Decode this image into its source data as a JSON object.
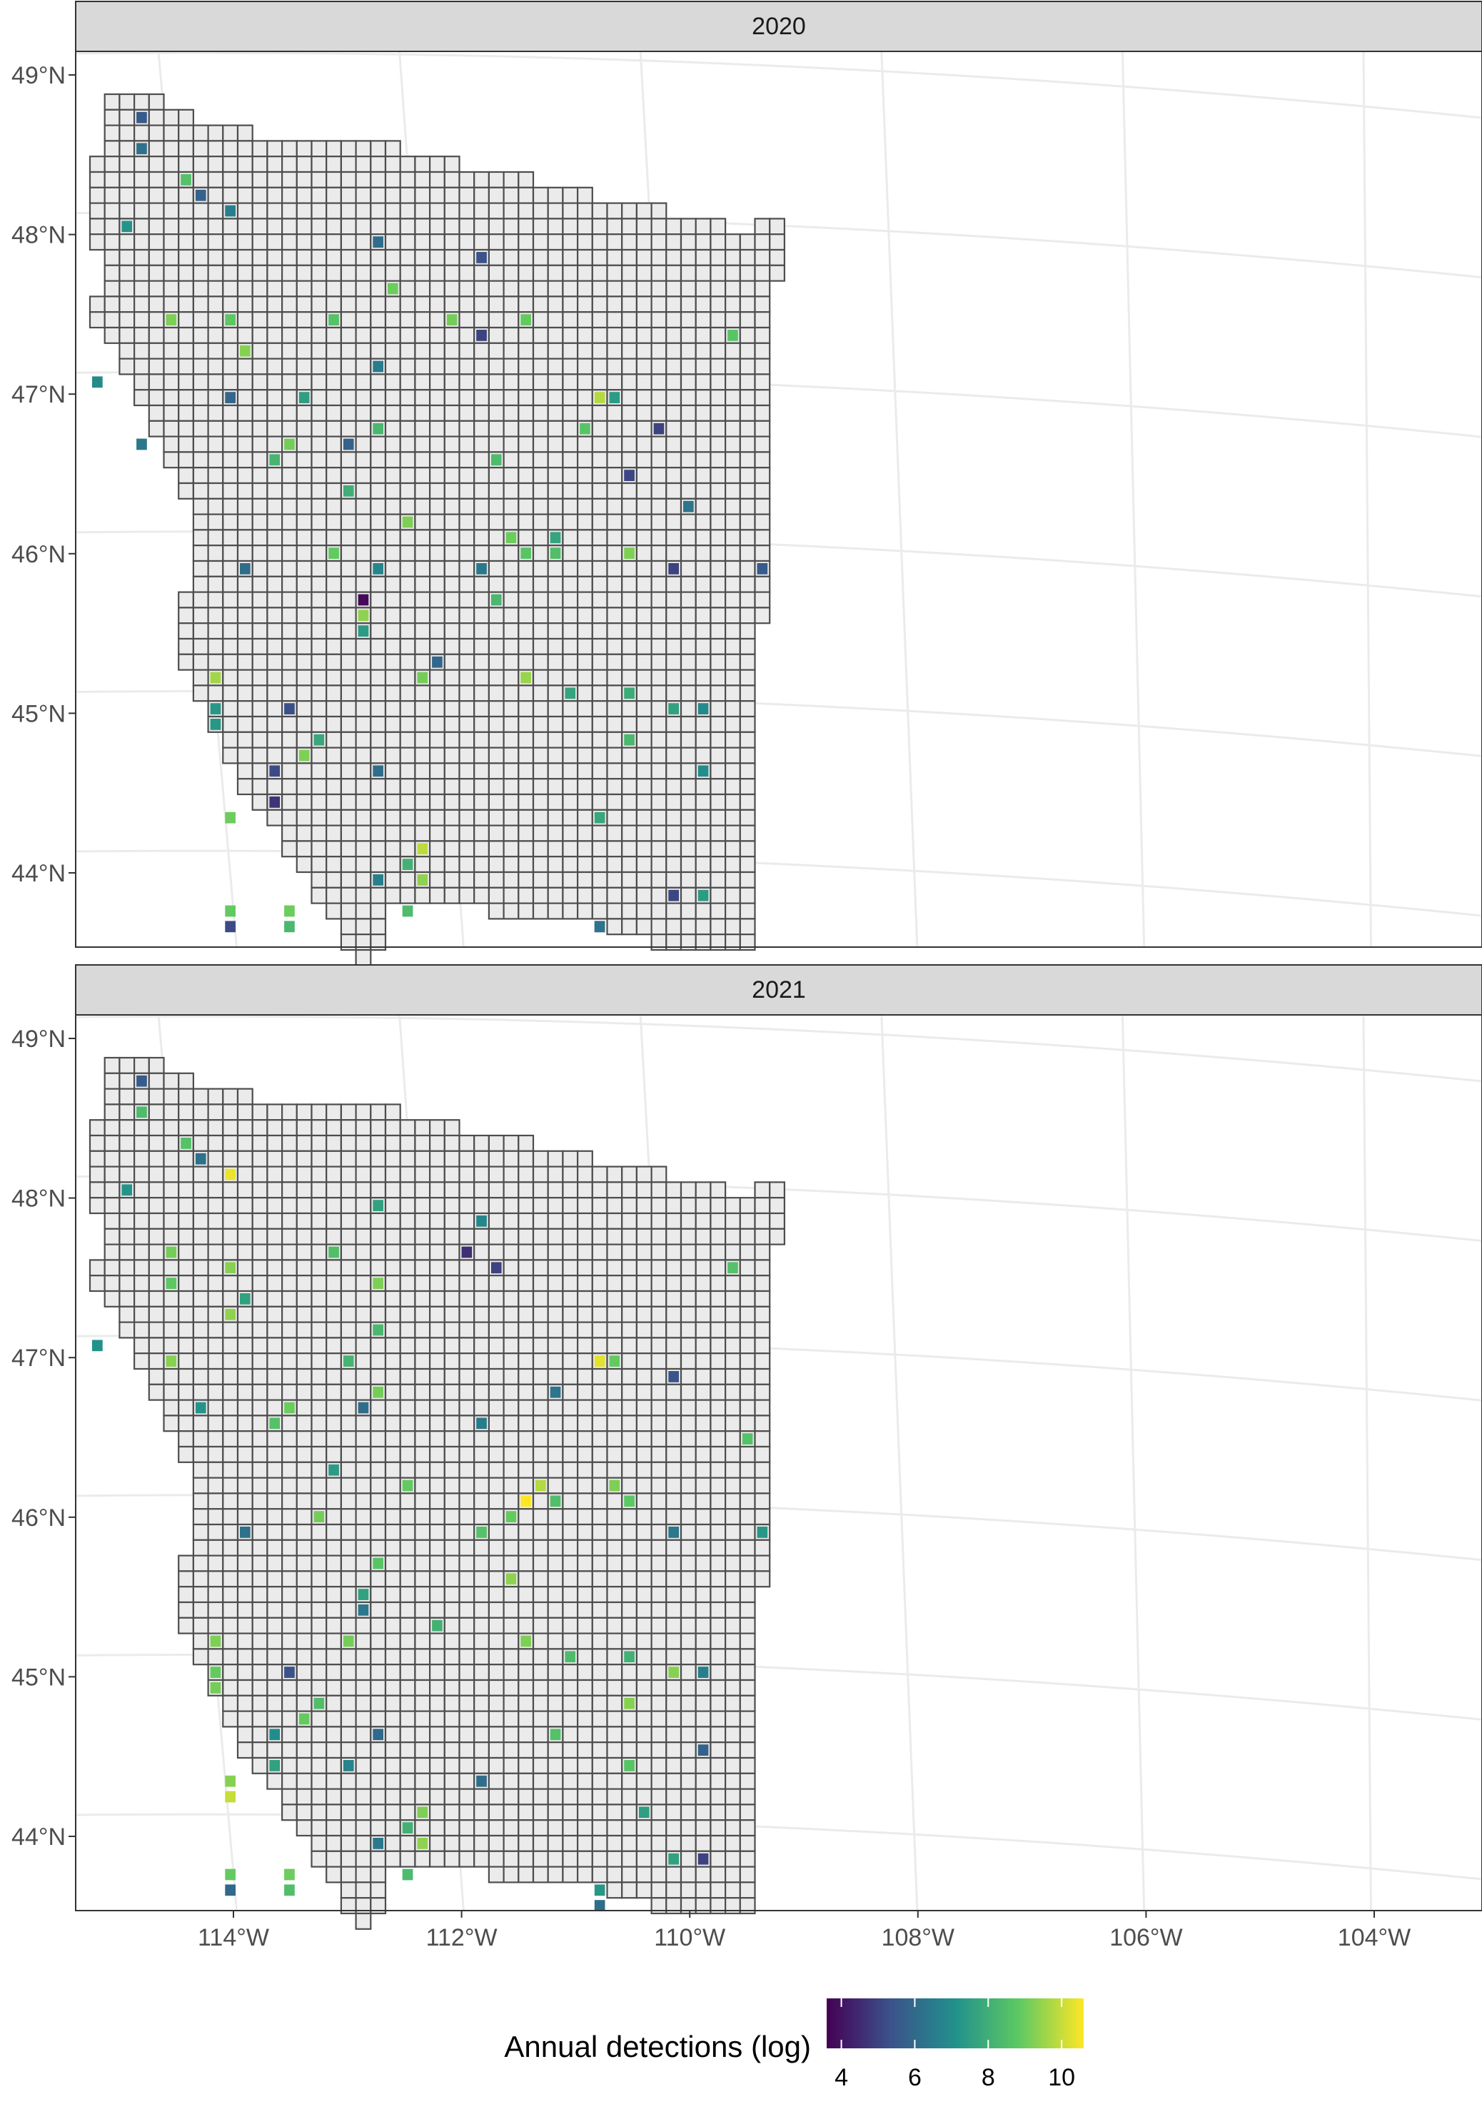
{
  "panels": [
    {
      "label": "2020"
    },
    {
      "label": "2021"
    }
  ],
  "y_ticks": [
    {
      "value": 49,
      "label": "49°N"
    },
    {
      "value": 48,
      "label": "48°N"
    },
    {
      "value": 47,
      "label": "47°N"
    },
    {
      "value": 46,
      "label": "46°N"
    },
    {
      "value": 45,
      "label": "45°N"
    },
    {
      "value": 44,
      "label": "44°N"
    }
  ],
  "x_ticks": [
    {
      "value": -114,
      "label": "114°W"
    },
    {
      "value": -112,
      "label": "112°W"
    },
    {
      "value": -110,
      "label": "110°W"
    },
    {
      "value": -108,
      "label": "108°W"
    },
    {
      "value": -106,
      "label": "106°W"
    },
    {
      "value": -104,
      "label": "104°W"
    }
  ],
  "legend": {
    "title": "Annual detections (log)",
    "range": [
      3.6,
      10.6
    ],
    "ticks": [
      {
        "value": 4,
        "label": "4"
      },
      {
        "value": 6,
        "label": "6"
      },
      {
        "value": 8,
        "label": "8"
      },
      {
        "value": 10,
        "label": "10"
      }
    ],
    "palette": [
      "#440154",
      "#3b528b",
      "#21918c",
      "#5ec962",
      "#fde725"
    ]
  },
  "colors": {
    "cell_fill": "#ebebeb",
    "cell_stroke": "#4d4d4d",
    "panel_border": "#333333",
    "strip_fill": "#d9d9d9",
    "gridline": "#ebebeb"
  }
}
